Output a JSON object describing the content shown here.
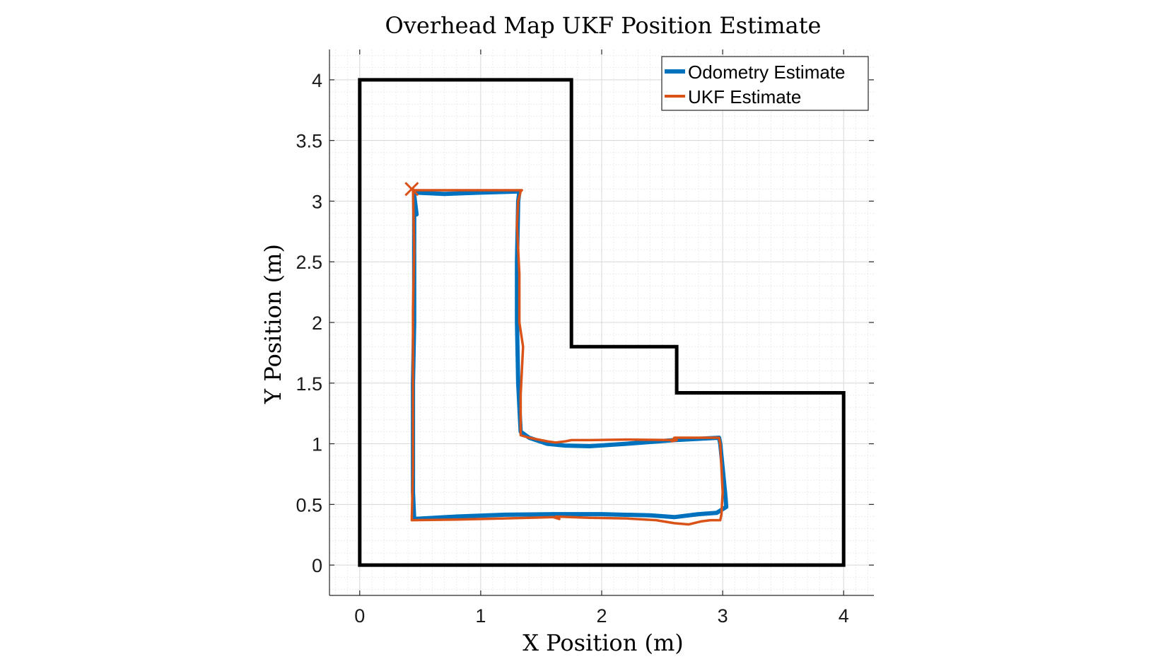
{
  "chart_data": {
    "type": "line",
    "title": "Overhead Map UKF Position Estimate",
    "xlabel": "X Position (m)",
    "ylabel": "Y Position (m)",
    "xlim": [
      -0.25,
      4.25
    ],
    "ylim": [
      -0.25,
      4.25
    ],
    "x_ticks": [
      0,
      1,
      2,
      3,
      4
    ],
    "y_ticks": [
      0,
      0.5,
      1,
      1.5,
      2,
      2.5,
      3,
      3.5,
      4
    ],
    "x_tick_labels": [
      "0",
      "1",
      "2",
      "3",
      "4"
    ],
    "y_tick_labels": [
      "0",
      "0.5",
      "1",
      "1.5",
      "2",
      "2.5",
      "3",
      "3.5",
      "4"
    ],
    "grid": "major and minor",
    "legend_position": "top-right",
    "series": [
      {
        "name": "Odometry Estimate",
        "color": "#0072BD",
        "x": [
          0.47,
          0.45,
          0.45,
          0.45,
          0.44,
          0.44,
          0.44,
          0.45,
          0.8,
          1.2,
          1.6,
          2.0,
          2.4,
          2.6,
          2.8,
          2.95,
          3.03,
          3.02,
          3.0,
          2.98,
          2.97,
          2.6,
          2.2,
          1.9,
          1.7,
          1.55,
          1.4,
          1.33,
          1.31,
          1.3,
          1.3,
          1.31,
          1.32,
          1.0,
          0.7,
          0.46
        ],
        "y": [
          2.89,
          3.05,
          2.5,
          2.0,
          1.5,
          1.0,
          0.6,
          0.38,
          0.4,
          0.415,
          0.42,
          0.42,
          0.41,
          0.395,
          0.42,
          0.43,
          0.48,
          0.6,
          0.8,
          1.0,
          1.05,
          1.03,
          1.0,
          0.98,
          0.985,
          1.0,
          1.05,
          1.1,
          1.5,
          2.0,
          2.5,
          3.0,
          3.08,
          3.07,
          3.06,
          3.07
        ]
      },
      {
        "name": "UKF Estimate",
        "color": "#D95319",
        "x": [
          0.44,
          0.45,
          0.44,
          0.44,
          0.44,
          0.44,
          0.43,
          0.8,
          1.2,
          1.6,
          1.65,
          1.62,
          1.9,
          2.2,
          2.45,
          2.6,
          2.72,
          2.82,
          2.9,
          2.98,
          2.99,
          3.0,
          2.99,
          2.98,
          2.97,
          2.6,
          2.58,
          2.62,
          2.2,
          1.9,
          1.75,
          1.7,
          1.62,
          1.55,
          1.4,
          1.33,
          1.33,
          1.35,
          1.32,
          1.32,
          1.3,
          1.31,
          1.33,
          1.34,
          1.0,
          0.7,
          0.45,
          0.44,
          0.47
        ],
        "y": [
          3.1,
          2.6,
          2.1,
          1.8,
          1.3,
          0.8,
          0.37,
          0.375,
          0.385,
          0.395,
          0.38,
          0.4,
          0.39,
          0.385,
          0.37,
          0.345,
          0.335,
          0.36,
          0.37,
          0.37,
          0.42,
          0.6,
          0.8,
          1.0,
          1.05,
          1.05,
          1.02,
          1.03,
          1.035,
          1.03,
          1.03,
          1.02,
          1.01,
          1.02,
          1.05,
          1.07,
          1.4,
          1.8,
          2.0,
          2.4,
          2.8,
          3.0,
          3.08,
          3.09,
          3.09,
          3.09,
          3.09,
          3.09,
          3.09
        ]
      },
      {
        "name": "",
        "color": "#000000",
        "x": [
          0,
          0,
          1.75,
          1.75,
          2.62,
          2.62,
          4.0,
          4.0,
          0
        ],
        "y": [
          0,
          4.0,
          4.0,
          1.8,
          1.8,
          1.42,
          1.42,
          0,
          0
        ]
      }
    ],
    "markers": [
      {
        "x": 0.43,
        "y": 3.1,
        "shape": "x",
        "color": "#D95319"
      }
    ]
  },
  "legend": {
    "entries": [
      {
        "label": "Odometry Estimate",
        "color": "#0072BD"
      },
      {
        "label": "UKF Estimate",
        "color": "#D95319"
      }
    ]
  }
}
